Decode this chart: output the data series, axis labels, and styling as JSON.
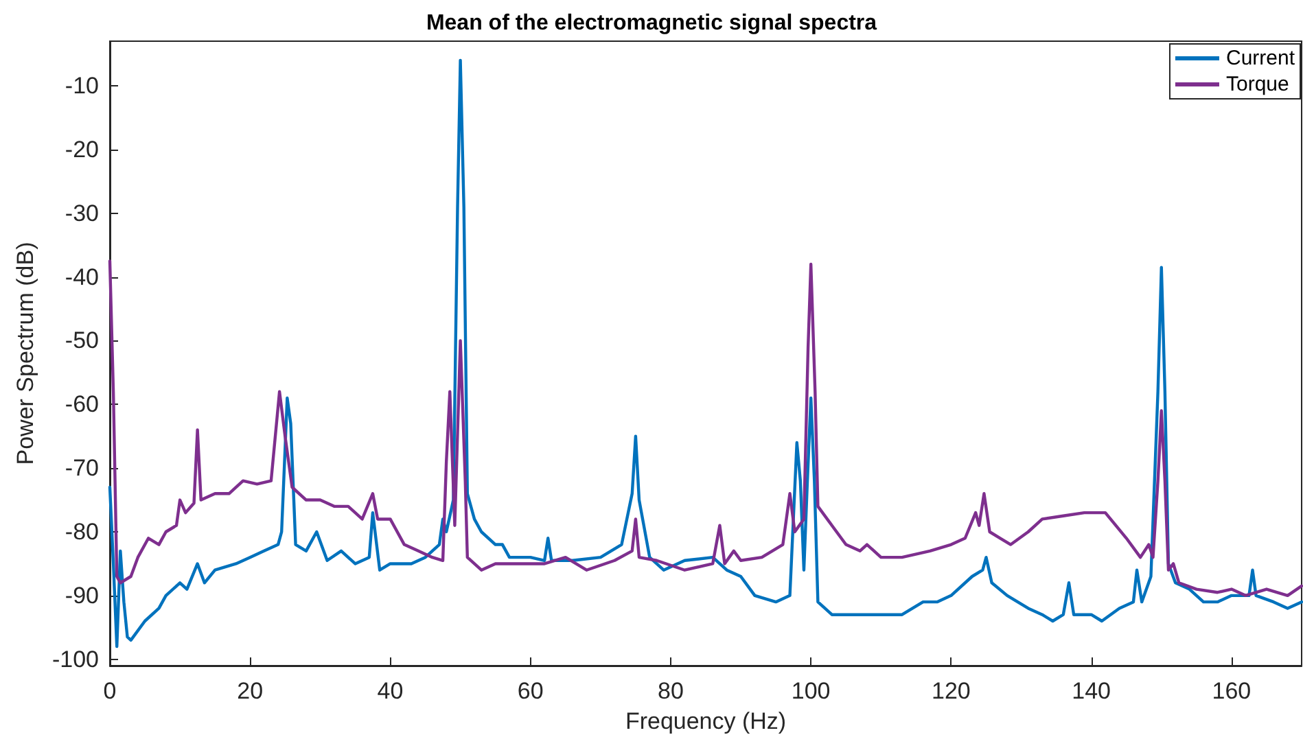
{
  "chart_data": {
    "type": "line",
    "title": "Mean of the electromagnetic signal spectra",
    "xlabel": "Frequency (Hz)",
    "ylabel": "Power Spectrum (dB)",
    "xlim": [
      0,
      170
    ],
    "xticks": [
      0,
      20,
      40,
      60,
      80,
      100,
      120,
      140,
      160
    ],
    "ylim": [
      -101,
      -3
    ],
    "yticks": [
      -100,
      -90,
      -80,
      -70,
      -60,
      -50,
      -40,
      -30,
      -20,
      -10
    ],
    "grid": false,
    "legend": "top right",
    "marker": "none",
    "line_style": "solid",
    "series": [
      {
        "name": "Current",
        "color": "#0072bd",
        "x": [
          0,
          0.5,
          1,
          1.5,
          2,
          2.5,
          3,
          5,
          7,
          8,
          10,
          11,
          12.5,
          13.5,
          15,
          18,
          20,
          22,
          24,
          24.5,
          25.3,
          25.8,
          26.5,
          28,
          29.5,
          31,
          33,
          35,
          37,
          37.5,
          38.5,
          40,
          43,
          45,
          47,
          47.5,
          48,
          49,
          49.6,
          50,
          50.5,
          51,
          52,
          53,
          55,
          56,
          57,
          60,
          62,
          62.5,
          63,
          66,
          70,
          73,
          74.5,
          75,
          75.5,
          77,
          79,
          82,
          86,
          88,
          90,
          92,
          95,
          97,
          98,
          98.5,
          99,
          99.5,
          100,
          100.5,
          101,
          103,
          105,
          107,
          110,
          113,
          116,
          118,
          120,
          123,
          124.5,
          125,
          125.8,
          128,
          131,
          133,
          134.5,
          136,
          136.8,
          137.5,
          140,
          141.5,
          144,
          146,
          146.5,
          147.2,
          148.5,
          149.5,
          150,
          150.5,
          151,
          152,
          154,
          156,
          158,
          160,
          162.5,
          163,
          163.5,
          166,
          168,
          170
        ],
        "values": [
          -73,
          -85,
          -98,
          -83,
          -91,
          -96.5,
          -97,
          -94,
          -92,
          -90,
          -88,
          -89,
          -85,
          -88,
          -86,
          -85,
          -84,
          -83,
          -82,
          -80,
          -59,
          -63,
          -82,
          -83,
          -80,
          -84.5,
          -83,
          -85,
          -84,
          -77,
          -86,
          -85,
          -85,
          -84,
          -82,
          -78,
          -80,
          -75,
          -29,
          -6,
          -29,
          -74,
          -78,
          -80,
          -82,
          -82,
          -84,
          -84,
          -84.5,
          -81,
          -84.5,
          -84.5,
          -84,
          -82,
          -74,
          -65,
          -75,
          -84,
          -86,
          -84.5,
          -84,
          -86,
          -87,
          -90,
          -91,
          -90,
          -66,
          -72,
          -86,
          -72,
          -59,
          -72,
          -91,
          -93,
          -93,
          -93,
          -93,
          -93,
          -91,
          -91,
          -90,
          -87,
          -86,
          -84,
          -88,
          -90,
          -92,
          -93,
          -94,
          -93,
          -88,
          -93,
          -93,
          -94,
          -92,
          -91,
          -86,
          -91,
          -87,
          -58,
          -38.5,
          -58,
          -85,
          -88,
          -89,
          -91,
          -91,
          -90,
          -90,
          -86,
          -90,
          -91,
          -92,
          -91
        ]
      },
      {
        "name": "Torque",
        "color": "#7e2f8e",
        "x": [
          0,
          0.5,
          1,
          1.5,
          3,
          4,
          5.5,
          7,
          8,
          9.5,
          10,
          10.8,
          12,
          12.5,
          13,
          15,
          17,
          19,
          21,
          23,
          24.2,
          25,
          26,
          28,
          30,
          32,
          34,
          36,
          37.5,
          38.2,
          40,
          42,
          44,
          46,
          47.5,
          48,
          48.5,
          49.2,
          50,
          50.7,
          51,
          53,
          55,
          58,
          62,
          65,
          68,
          72,
          74.5,
          75,
          75.5,
          78,
          82,
          86,
          87,
          87.7,
          89,
          90,
          93,
          96,
          97,
          97.7,
          99,
          99.6,
          100,
          100.6,
          101,
          103,
          105,
          107,
          108,
          110,
          113,
          117,
          120,
          122,
          123.5,
          124,
          124.7,
          125.5,
          127,
          128.5,
          131,
          133,
          136,
          139,
          142,
          145,
          147,
          148.2,
          148.8,
          149.5,
          150,
          150.5,
          151,
          151.7,
          152.5,
          155,
          158,
          160,
          162,
          165,
          168,
          170
        ],
        "values": [
          -37.5,
          -58,
          -87,
          -88,
          -87,
          -84,
          -81,
          -82,
          -80,
          -79,
          -75,
          -77,
          -75.5,
          -64,
          -75,
          -74,
          -74,
          -72,
          -72.5,
          -72,
          -58,
          -65,
          -73,
          -75,
          -75,
          -76,
          -76,
          -78,
          -74,
          -78,
          -78,
          -82,
          -83,
          -84,
          -84.5,
          -69,
          -58,
          -79,
          -50,
          -72,
          -84,
          -86,
          -85,
          -85,
          -85,
          -84,
          -86,
          -84.5,
          -83,
          -78,
          -84,
          -84.5,
          -86,
          -85,
          -79,
          -85,
          -83,
          -84.5,
          -84,
          -82,
          -74,
          -80,
          -78,
          -51,
          -38,
          -58,
          -76,
          -79,
          -82,
          -83,
          -82,
          -84,
          -84,
          -83,
          -82,
          -81,
          -77,
          -79,
          -74,
          -80,
          -81,
          -82,
          -80,
          -78,
          -77.5,
          -77,
          -77,
          -81,
          -84,
          -82,
          -84,
          -72,
          -61,
          -72,
          -86,
          -85,
          -88,
          -89,
          -89.5,
          -89,
          -90,
          -89,
          -90,
          -88.5
        ]
      }
    ]
  }
}
